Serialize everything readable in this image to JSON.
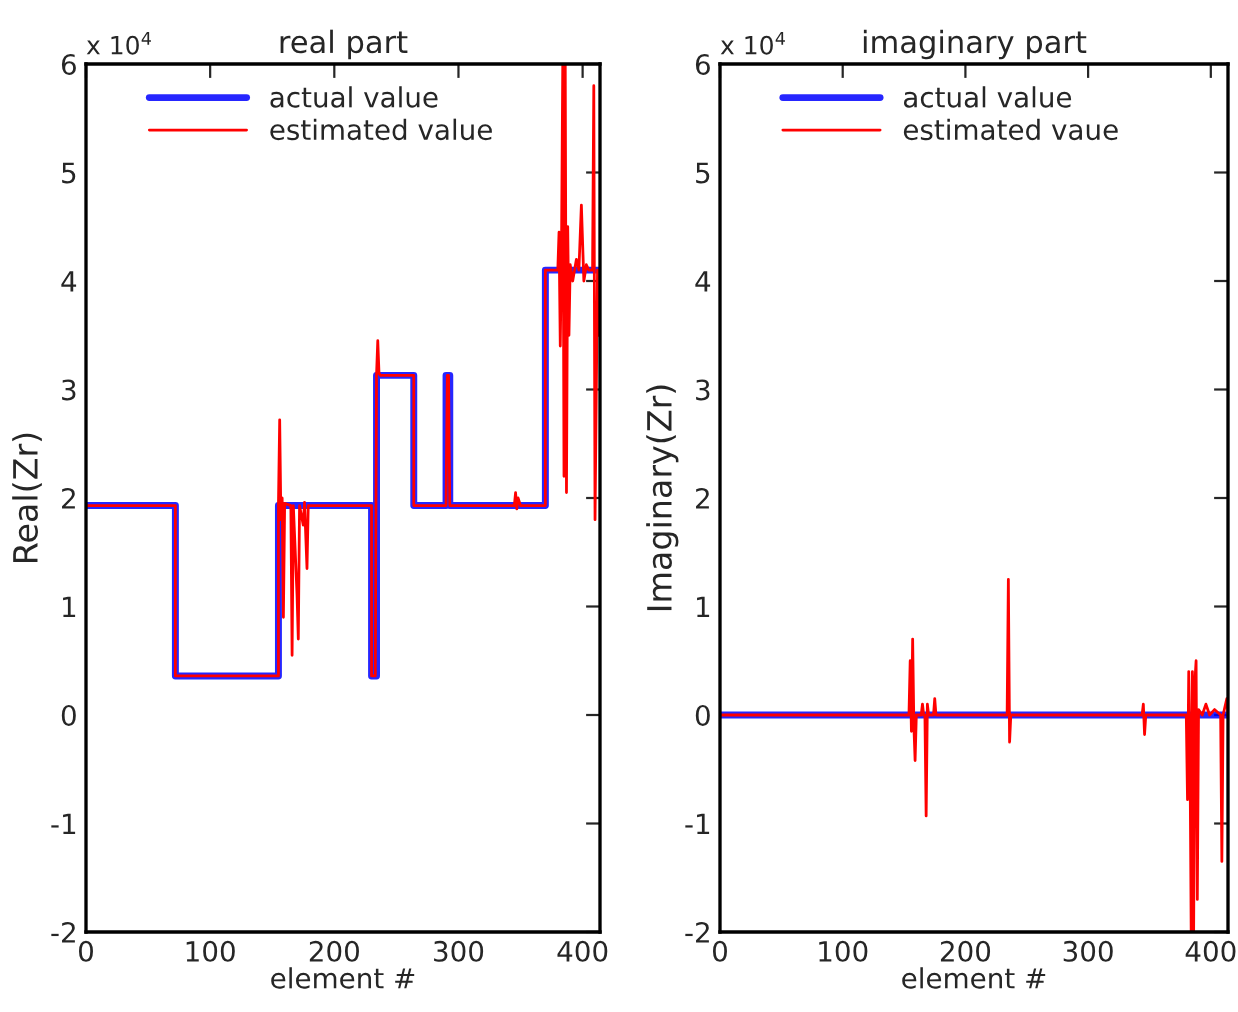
{
  "chart_data": [
    {
      "type": "line",
      "title": "real part",
      "xlabel": "element #",
      "ylabel": "Real(Zr)",
      "annotations": [
        "x 10$^{4}$"
      ],
      "xlim": [
        0,
        414
      ],
      "xticks": [
        0,
        100,
        200,
        300,
        400
      ],
      "ylim": [
        -2,
        6
      ],
      "yticks": [
        -2,
        -1,
        0,
        1,
        2,
        3,
        4,
        5,
        6
      ],
      "grid": false,
      "legend": "top left",
      "series": [
        {
          "name": "actual value",
          "color": "#0000ff",
          "x": [
            0,
            72,
            72,
            155,
            155,
            230,
            230,
            234,
            234,
            264,
            264,
            290,
            290,
            293,
            293,
            370,
            370,
            414
          ],
          "values": [
            1.93,
            1.93,
            0.36,
            0.36,
            1.93,
            1.93,
            0.36,
            0.36,
            3.13,
            3.13,
            1.93,
            1.93,
            3.13,
            3.13,
            1.93,
            1.93,
            4.1,
            4.1
          ]
        },
        {
          "name": "estimated value",
          "color": "#ff0000",
          "x": [
            0,
            72,
            72,
            155,
            155,
            156,
            157,
            158,
            159,
            160,
            165,
            166,
            167,
            170,
            171,
            172,
            175,
            176,
            178,
            179,
            230,
            230,
            233,
            234,
            235,
            236,
            237,
            264,
            264,
            290,
            291,
            292,
            293,
            345,
            346,
            347,
            348,
            350,
            370,
            370,
            380,
            381,
            382,
            383,
            384,
            385,
            386,
            387,
            388,
            389,
            390,
            392,
            395,
            397,
            399,
            401,
            403,
            405,
            408,
            409,
            410,
            412,
            413,
            414
          ],
          "values": [
            1.93,
            1.93,
            0.36,
            0.36,
            1.93,
            2.72,
            1.8,
            2.0,
            0.9,
            1.95,
            1.93,
            0.55,
            1.93,
            1.1,
            0.7,
            1.93,
            1.75,
            1.96,
            1.35,
            1.93,
            1.93,
            0.36,
            0.36,
            3.13,
            3.45,
            3.15,
            3.13,
            3.13,
            1.93,
            1.93,
            3.13,
            3.13,
            1.93,
            1.93,
            2.05,
            1.9,
            2.0,
            1.93,
            1.93,
            4.1,
            4.1,
            4.45,
            3.4,
            4.3,
            6.0,
            2.2,
            6.0,
            2.05,
            4.5,
            3.5,
            4.15,
            4.0,
            4.2,
            4.1,
            4.7,
            4.0,
            4.15,
            4.1,
            4.1,
            5.8,
            1.8,
            4.1,
            3.5,
            4.1
          ]
        }
      ]
    },
    {
      "type": "line",
      "title": "imaginary part",
      "xlabel": "element #",
      "ylabel": "Imaginary(Zr)",
      "annotations": [
        "x 10$^{4}$"
      ],
      "xlim": [
        0,
        414
      ],
      "xticks": [
        0,
        100,
        200,
        300,
        400
      ],
      "ylim": [
        -2,
        6
      ],
      "yticks": [
        -2,
        -1,
        0,
        1,
        2,
        3,
        4,
        5,
        6
      ],
      "grid": false,
      "legend": "top left",
      "series": [
        {
          "name": "actual value",
          "color": "#0000ff",
          "x": [
            0,
            414
          ],
          "values": [
            0,
            0
          ]
        },
        {
          "name": "estimated vaue",
          "color": "#ff0000",
          "x": [
            0,
            154,
            155,
            156,
            157,
            158,
            159,
            160,
            164,
            165,
            166,
            167,
            168,
            169,
            170,
            174,
            175,
            176,
            180,
            234,
            235,
            236,
            237,
            344,
            345,
            346,
            347,
            380,
            381,
            382,
            383,
            384,
            385,
            386,
            387,
            388,
            389,
            390,
            393,
            396,
            399,
            403,
            408,
            409,
            410,
            413,
            414
          ],
          "values": [
            0,
            0,
            0.5,
            -0.15,
            0.7,
            -0.1,
            -0.42,
            0,
            0,
            0.1,
            0,
            0,
            -0.93,
            0.1,
            0,
            0,
            0.15,
            0,
            0,
            0,
            1.25,
            -0.25,
            0,
            0,
            0.1,
            -0.18,
            0,
            0,
            -0.78,
            0.4,
            -0.3,
            -2,
            0.4,
            -2,
            0.3,
            0.5,
            -1.7,
            0.05,
            0,
            0.1,
            0,
            0.05,
            0,
            -1.35,
            0,
            0.15,
            0
          ]
        }
      ]
    }
  ]
}
